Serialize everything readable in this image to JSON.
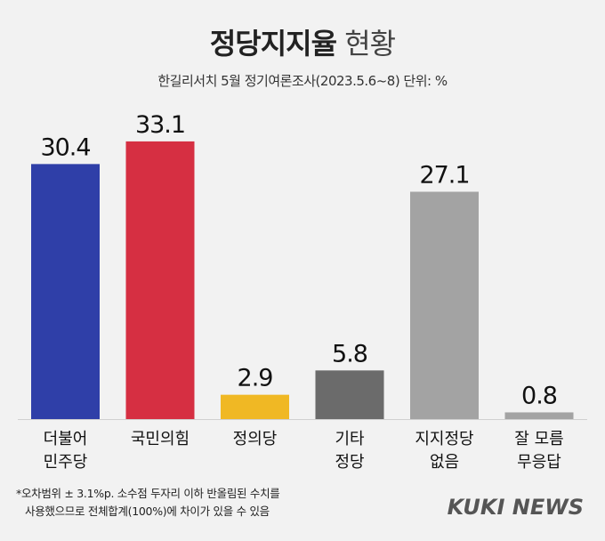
{
  "header": {
    "title_bold": "정당지지율",
    "title_light": "현황",
    "subtitle": "한길리서치 5월 정기여론조사(2023.5.6~8) 단위: %"
  },
  "chart_data": {
    "type": "bar",
    "categories": [
      [
        "더불어",
        "민주당"
      ],
      [
        "국민의힘"
      ],
      [
        "정의당"
      ],
      [
        "기타",
        "정당"
      ],
      [
        "지지정당",
        "없음"
      ],
      [
        "잘 모름",
        "무응답"
      ]
    ],
    "values": [
      30.4,
      33.1,
      2.9,
      5.8,
      27.1,
      0.8
    ],
    "value_labels": [
      "30.4",
      "33.1",
      "2.9",
      "5.8",
      "27.1",
      "0.8"
    ],
    "colors": [
      "#2f3fa8",
      "#d62f42",
      "#f0b824",
      "#6b6b6b",
      "#a3a3a3",
      "#a3a3a3"
    ],
    "ylim": [
      0,
      35
    ],
    "grid": false,
    "legend": "none"
  },
  "footnote": {
    "line1": "*오차범위 ± 3.1%p. 소수점 두자리 이하 반올림된 수치를",
    "line2": "사용했으므로 전체합계(100%)에 차이가 있을 수 있음"
  },
  "brand": "KUKI NEWS"
}
